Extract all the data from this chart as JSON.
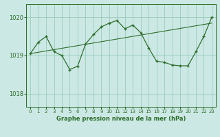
{
  "title": "Graphe pression niveau de la mer (hPa)",
  "bg_color": "#cce8e4",
  "grid_color": "#99ccbb",
  "line_color": "#2d6e2d",
  "x_ticks": [
    0,
    1,
    2,
    3,
    4,
    5,
    6,
    7,
    8,
    9,
    10,
    11,
    12,
    13,
    14,
    15,
    16,
    17,
    18,
    19,
    20,
    21,
    22,
    23
  ],
  "y_ticks": [
    1018,
    1019,
    1020
  ],
  "ylim": [
    1017.65,
    1020.35
  ],
  "xlim": [
    -0.5,
    23.5
  ],
  "data_x": [
    0,
    1,
    2,
    3,
    4,
    5,
    6,
    7,
    8,
    9,
    10,
    11,
    12,
    13,
    14,
    15,
    16,
    17,
    18,
    19,
    20,
    21,
    22,
    23
  ],
  "data_y": [
    1019.05,
    1019.35,
    1019.5,
    1019.1,
    1019.0,
    1018.63,
    1018.72,
    1019.3,
    1019.55,
    1019.75,
    1019.85,
    1019.92,
    1019.7,
    1019.8,
    1019.6,
    1019.2,
    1018.85,
    1018.82,
    1018.75,
    1018.73,
    1018.73,
    1019.1,
    1019.5,
    1020.0
  ],
  "trend_x": [
    0,
    23
  ],
  "trend_y": [
    1019.05,
    1019.85
  ]
}
